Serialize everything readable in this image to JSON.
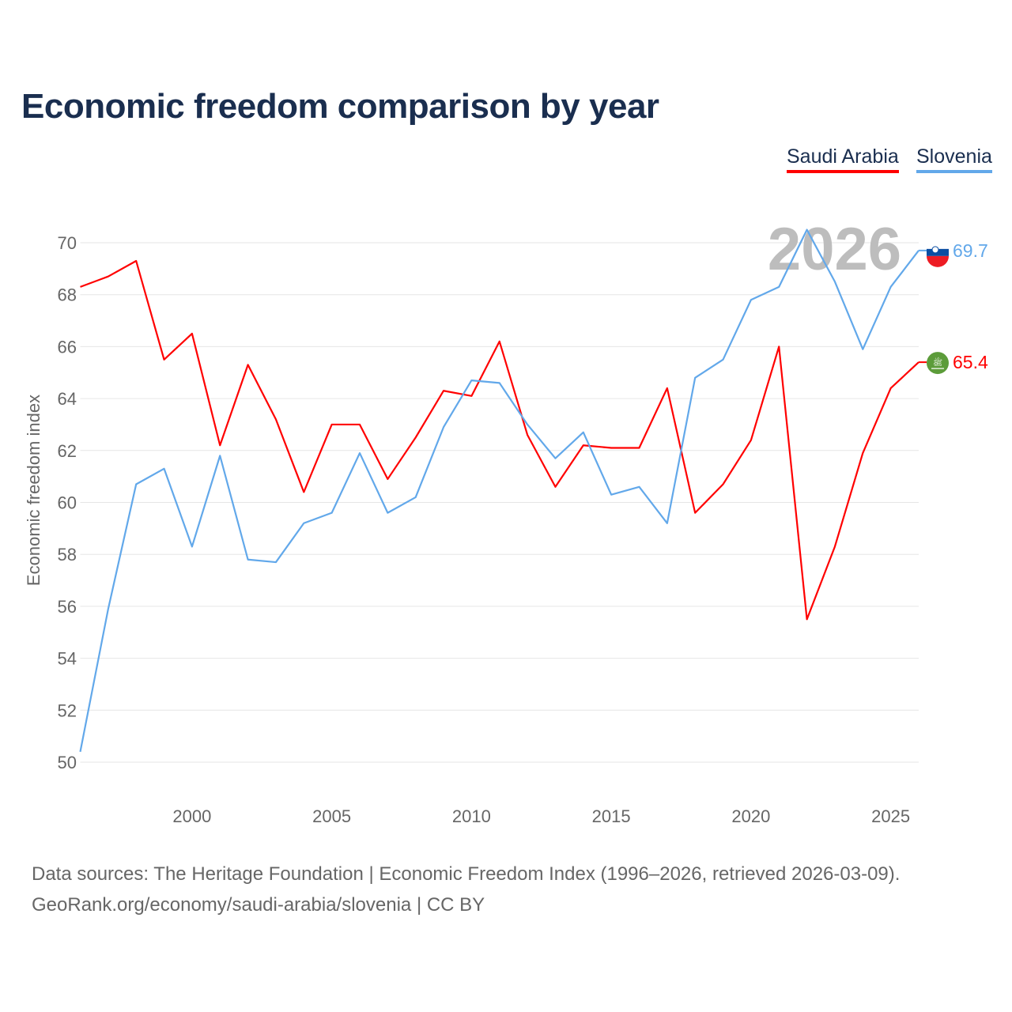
{
  "chart_data": {
    "type": "line",
    "title": "Economic freedom comparison by year",
    "xlabel": "",
    "ylabel": "Economic freedom index",
    "ylim": [
      50,
      70
    ],
    "xlim": [
      1996,
      2026
    ],
    "yticks": [
      50,
      52,
      54,
      56,
      58,
      60,
      62,
      64,
      66,
      68,
      70
    ],
    "xticks": [
      2000,
      2005,
      2010,
      2015,
      2020,
      2025
    ],
    "grid": true,
    "legend": "top-right",
    "year_watermark": "2026",
    "x": [
      1996,
      1997,
      1998,
      1999,
      2000,
      2001,
      2002,
      2003,
      2004,
      2005,
      2006,
      2007,
      2008,
      2009,
      2010,
      2011,
      2012,
      2013,
      2014,
      2015,
      2016,
      2017,
      2018,
      2019,
      2020,
      2021,
      2022,
      2023,
      2024,
      2025,
      2026
    ],
    "series": [
      {
        "name": "Saudi Arabia",
        "color": "#ff0000",
        "end_label": "65.4",
        "flag": "saudi-arabia-flag",
        "values": [
          68.3,
          68.7,
          69.3,
          65.5,
          66.5,
          62.2,
          65.3,
          63.2,
          60.4,
          63.0,
          63.0,
          60.9,
          62.5,
          64.3,
          64.1,
          66.2,
          62.6,
          60.6,
          62.2,
          62.1,
          62.1,
          64.4,
          59.6,
          60.7,
          62.4,
          66.0,
          55.5,
          58.3,
          61.9,
          64.4,
          65.4
        ]
      },
      {
        "name": "Slovenia",
        "color": "#62a8ea",
        "end_label": "69.7",
        "flag": "slovenia-flag",
        "values": [
          50.4,
          55.9,
          60.7,
          61.3,
          58.3,
          61.8,
          57.8,
          57.7,
          59.2,
          59.6,
          61.9,
          59.6,
          60.2,
          62.9,
          64.7,
          64.6,
          63.0,
          61.7,
          62.7,
          60.3,
          60.6,
          59.2,
          64.8,
          65.5,
          67.8,
          68.3,
          70.5,
          68.5,
          65.9,
          68.3,
          69.7
        ]
      }
    ]
  },
  "source": {
    "line1": "Data sources: The Heritage Foundation | Economic Freedom Index (1996–2026, retrieved 2026-03-09).",
    "line2": "GeoRank.org/economy/saudi-arabia/slovenia | CC BY"
  }
}
